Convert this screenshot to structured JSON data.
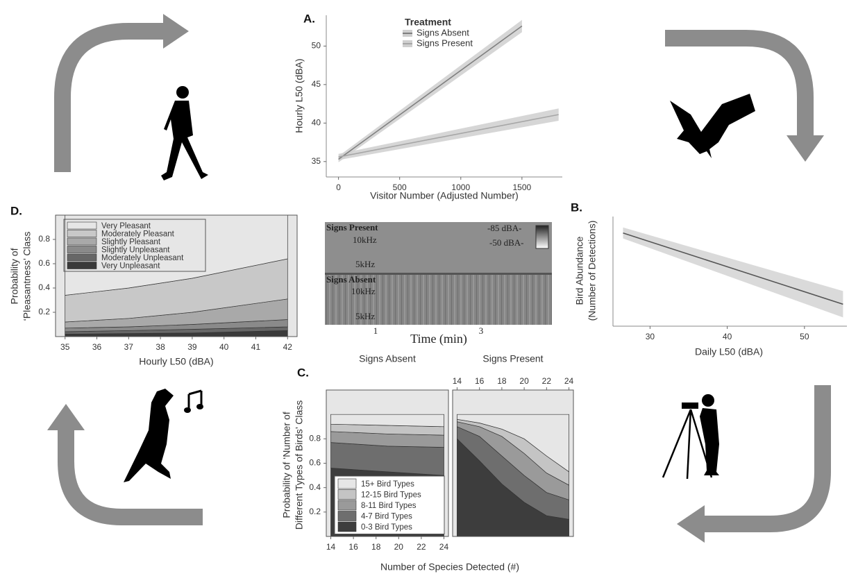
{
  "chart_data": [
    {
      "type": "line",
      "panel_label": "A.",
      "x_label": "Visitor Number (Adjusted Number)",
      "y_label": "Hourly L50 (dBA)",
      "legend_title": "Treatment",
      "series": [
        {
          "name": "Signs Absent",
          "color": "#7f7f7f",
          "x": [
            0,
            1500
          ],
          "values": [
            35.3,
            52.6
          ],
          "lower": [
            34.9,
            51.8
          ],
          "upper": [
            35.7,
            53.4
          ]
        },
        {
          "name": "Signs Present",
          "color": "#a6a6a6",
          "x": [
            0,
            1800
          ],
          "values": [
            35.6,
            41.1
          ],
          "lower": [
            35.2,
            40.3
          ],
          "upper": [
            36.0,
            41.9
          ]
        }
      ],
      "band_color": "#cfcfcf",
      "xlim": [
        -100,
        1830
      ],
      "ylim": [
        33,
        54
      ],
      "xticks": [
        0,
        500,
        1000,
        1500
      ],
      "yticks": [
        35,
        40,
        45,
        50
      ]
    },
    {
      "type": "line",
      "panel_label": "B.",
      "x_label": "Daily L50 (dBA)",
      "y_label": [
        "Bird Abundance",
        "(Number of Detections)"
      ],
      "series": [
        {
          "color": "#555555",
          "x": [
            26.5,
            55
          ],
          "values": [
            0.85,
            0.2
          ],
          "lower": [
            0.8,
            0.08
          ],
          "upper": [
            0.9,
            0.32
          ]
        }
      ],
      "band_color": "#d3d3d3",
      "xlim": [
        25.2,
        55.5
      ],
      "ylim": [
        0,
        1
      ],
      "xticks": [
        30,
        40,
        50
      ]
    },
    {
      "type": "area",
      "panel_label": "D.",
      "x_label": "Hourly L50 (dBA)",
      "y_label": [
        "Probability of",
        "‘Pleasantness’ Class"
      ],
      "x": [
        35,
        37,
        39,
        42
      ],
      "series": [
        {
          "name": "Very Pleasant",
          "color": "#e6e6e6",
          "values": [
            0.66,
            0.6,
            0.52,
            0.36
          ]
        },
        {
          "name": "Moderately Pleasant",
          "color": "#c8c8c8",
          "values": [
            0.22,
            0.25,
            0.28,
            0.33
          ]
        },
        {
          "name": "Slightly Pleasant",
          "color": "#a9a9a9",
          "values": [
            0.05,
            0.07,
            0.1,
            0.17
          ]
        },
        {
          "name": "Slightly Unpleasant",
          "color": "#8a8a8a",
          "values": [
            0.03,
            0.03,
            0.04,
            0.06
          ]
        },
        {
          "name": "Moderately Unpleasant",
          "color": "#676767",
          "values": [
            0.02,
            0.025,
            0.03,
            0.03
          ]
        },
        {
          "name": "Very Unpleasant",
          "color": "#3a3a3a",
          "values": [
            0.02,
            0.025,
            0.03,
            0.05
          ]
        }
      ],
      "xlim": [
        34.7,
        42.3
      ],
      "ylim": [
        0,
        1
      ],
      "xticks": [
        35,
        36,
        37,
        38,
        39,
        40,
        41,
        42
      ],
      "yticks": [
        0.2,
        0.4,
        0.6,
        0.8
      ]
    },
    {
      "type": "area",
      "panel_label": "C.",
      "x_label": "Number of Species Detected (#)",
      "y_label": [
        "Probability of ‘Number of",
        "Different  Types of Birds’ Class"
      ],
      "series": [
        {
          "name": "15+ Bird Types",
          "color": "#e6e6e6"
        },
        {
          "name": "12-15 Bird Types",
          "color": "#c4c4c4"
        },
        {
          "name": "8-11 Bird Types",
          "color": "#9a9a9a"
        },
        {
          "name": "4-7 Bird Types",
          "color": "#6e6e6e"
        },
        {
          "name": "0-3 Bird Types",
          "color": "#3d3d3d"
        }
      ],
      "facets": [
        {
          "title": "Signs Absent",
          "x": [
            14,
            19,
            24
          ],
          "values": [
            [
              0.08,
              0.09,
              0.1
            ],
            [
              0.06,
              0.07,
              0.07
            ],
            [
              0.09,
              0.1,
              0.1
            ],
            [
              0.21,
              0.21,
              0.23
            ],
            [
              0.56,
              0.53,
              0.5
            ]
          ]
        },
        {
          "title": "Signs Present",
          "x": [
            14,
            16,
            18,
            20,
            22,
            24
          ],
          "values": [
            [
              0.04,
              0.07,
              0.12,
              0.2,
              0.34,
              0.47
            ],
            [
              0.02,
              0.03,
              0.06,
              0.12,
              0.14,
              0.11
            ],
            [
              0.04,
              0.08,
              0.16,
              0.18,
              0.16,
              0.12
            ],
            [
              0.1,
              0.2,
              0.23,
              0.22,
              0.19,
              0.16
            ],
            [
              0.8,
              0.62,
              0.43,
              0.28,
              0.17,
              0.14
            ]
          ]
        }
      ],
      "xlim": [
        13.6,
        24.4
      ],
      "ylim": [
        0,
        1.2
      ],
      "xticks": [
        14,
        16,
        18,
        20,
        22,
        24
      ],
      "yticks": [
        0.2,
        0.4,
        0.6,
        0.8
      ]
    }
  ],
  "spectrogram": {
    "top_label": "Signs Present",
    "bottom_label": "Signs Absent",
    "scale_high": "-85 dBA-",
    "scale_low": "-50 dBA-",
    "top_freqs": [
      "10kHz",
      "5kHz"
    ],
    "bottom_freqs": [
      "10kHz",
      "5kHz"
    ],
    "time_ticks": [
      "1",
      "3"
    ],
    "time_label": "Time (min)"
  }
}
